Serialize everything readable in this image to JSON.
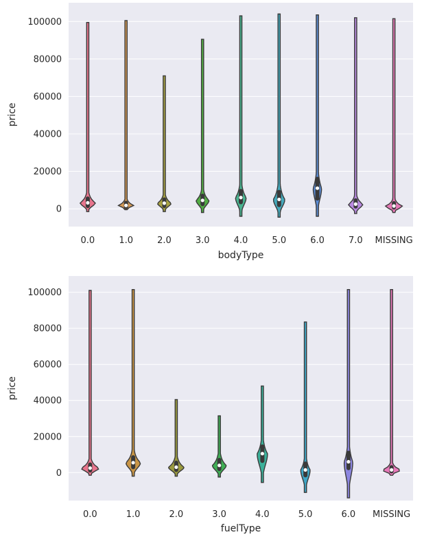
{
  "chart_data": [
    {
      "type": "violin",
      "xlabel": "bodyType",
      "ylabel": "price",
      "categories": [
        "0.0",
        "1.0",
        "2.0",
        "3.0",
        "4.0",
        "5.0",
        "6.0",
        "7.0",
        "MISSING"
      ],
      "yticks": [
        0,
        20000,
        40000,
        60000,
        80000,
        100000
      ],
      "ytick_labels": [
        "0",
        "20000",
        "40000",
        "60000",
        "80000",
        "100000"
      ],
      "ylim": [
        -9500,
        110000
      ],
      "grid": true,
      "violins": [
        {
          "category": "0.0",
          "color": "#e8758d",
          "max": 99500,
          "min": -1500,
          "median": 3200,
          "q1": 1500,
          "q3": 5500,
          "width": 0.4
        },
        {
          "category": "1.0",
          "color": "#d49a56",
          "max": 100500,
          "min": -500,
          "median": 1800,
          "q1": 900,
          "q3": 3200,
          "width": 0.4
        },
        {
          "category": "2.0",
          "color": "#a8a243",
          "max": 71000,
          "min": -1500,
          "median": 3000,
          "q1": 1500,
          "q3": 5000,
          "width": 0.36
        },
        {
          "category": "3.0",
          "color": "#52ad44",
          "max": 90500,
          "min": -2000,
          "median": 4500,
          "q1": 2500,
          "q3": 7000,
          "width": 0.34
        },
        {
          "category": "4.0",
          "color": "#49b28f",
          "max": 103000,
          "min": -4000,
          "median": 6000,
          "q1": 3500,
          "q3": 9500,
          "width": 0.28
        },
        {
          "category": "5.0",
          "color": "#44a9bb",
          "max": 104000,
          "min": -4500,
          "median": 5000,
          "q1": 2000,
          "q3": 9000,
          "width": 0.3
        },
        {
          "category": "6.0",
          "color": "#5b8bd3",
          "max": 103500,
          "min": -4000,
          "median": 11000,
          "q1": 5500,
          "q3": 16000,
          "width": 0.22
        },
        {
          "category": "7.0",
          "color": "#b989e0",
          "max": 102000,
          "min": -2500,
          "median": 2500,
          "q1": 1200,
          "q3": 4500,
          "width": 0.38
        },
        {
          "category": "MISSING",
          "color": "#e479b5",
          "max": 101500,
          "min": -2000,
          "median": 1500,
          "q1": 700,
          "q3": 3000,
          "width": 0.44
        }
      ]
    },
    {
      "type": "violin",
      "xlabel": "fuelType",
      "ylabel": "price",
      "categories": [
        "0.0",
        "1.0",
        "2.0",
        "3.0",
        "4.0",
        "5.0",
        "6.0",
        "MISSING"
      ],
      "yticks": [
        0,
        20000,
        40000,
        60000,
        80000,
        100000
      ],
      "ytick_labels": [
        "0",
        "20000",
        "40000",
        "60000",
        "80000",
        "100000"
      ],
      "ylim": [
        -15500,
        109000
      ],
      "grid": true,
      "violins": [
        {
          "category": "0.0",
          "color": "#e8758d",
          "max": 101000,
          "min": -1500,
          "median": 2500,
          "q1": 1200,
          "q3": 4500,
          "width": 0.42
        },
        {
          "category": "1.0",
          "color": "#c99546",
          "max": 101500,
          "min": -2000,
          "median": 5500,
          "q1": 3000,
          "q3": 8500,
          "width": 0.34
        },
        {
          "category": "2.0",
          "color": "#9a9a3f",
          "max": 40500,
          "min": -2000,
          "median": 3000,
          "q1": 1500,
          "q3": 5500,
          "width": 0.36
        },
        {
          "category": "3.0",
          "color": "#3fae55",
          "max": 31500,
          "min": -2500,
          "median": 4000,
          "q1": 2000,
          "q3": 7000,
          "width": 0.32
        },
        {
          "category": "4.0",
          "color": "#3bb09a",
          "max": 48000,
          "min": -5500,
          "median": 10500,
          "q1": 6500,
          "q3": 14500,
          "width": 0.24
        },
        {
          "category": "5.0",
          "color": "#3fa6c6",
          "max": 83500,
          "min": -11000,
          "median": 1500,
          "q1": -1500,
          "q3": 5000,
          "width": 0.22
        },
        {
          "category": "6.0",
          "color": "#8c86e0",
          "max": 101500,
          "min": -14000,
          "median": 6000,
          "q1": 2500,
          "q3": 11000,
          "width": 0.2
        },
        {
          "category": "MISSING",
          "color": "#e678b8",
          "max": 101500,
          "min": -1500,
          "median": 1500,
          "q1": 700,
          "q3": 3000,
          "width": 0.44
        }
      ]
    }
  ]
}
